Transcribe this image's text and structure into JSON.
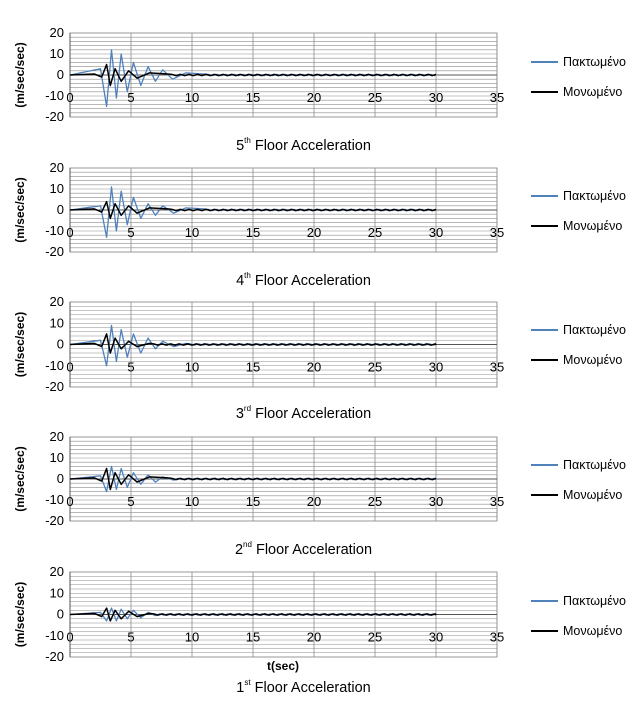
{
  "legend": [
    "Πακτωμένο",
    "Μονωμένο"
  ],
  "colors": {
    "fixed": "#4f81bd",
    "isolated": "#000000",
    "grid": "#8c8c8c",
    "axis": "#000000"
  },
  "xlabel": "t(sec)",
  "chart_data": [
    {
      "type": "line",
      "caption_prefix": "5",
      "caption_sup": "th",
      "caption_rest": " Floor Acceleration",
      "ylabel": "(m/sec/sec)",
      "xlim": [
        0,
        35
      ],
      "ylim": [
        -20,
        20
      ],
      "xticks": [
        "0",
        "5",
        "10",
        "15",
        "20",
        "25",
        "30",
        "35"
      ],
      "yticks": [
        "20",
        "10",
        "0",
        "-10",
        "-20"
      ],
      "duration": 30,
      "series": [
        {
          "name": "Πακτωμένο",
          "peaks": [
            [
              2.5,
              3
            ],
            [
              3.0,
              -15
            ],
            [
              3.4,
              12
            ],
            [
              3.8,
              -11
            ],
            [
              4.2,
              10
            ],
            [
              4.7,
              -8
            ],
            [
              5.2,
              6
            ],
            [
              5.8,
              -5
            ],
            [
              6.4,
              4
            ],
            [
              7.0,
              -3
            ],
            [
              7.6,
              2.5
            ],
            [
              8.4,
              -2
            ],
            [
              9.5,
              1
            ],
            [
              11,
              0.5
            ]
          ]
        },
        {
          "name": "Μονωμένο",
          "peaks": [
            [
              2.0,
              0.5
            ],
            [
              2.6,
              -1
            ],
            [
              3.0,
              5
            ],
            [
              3.3,
              -5
            ],
            [
              3.7,
              3
            ],
            [
              4.2,
              -3
            ],
            [
              4.8,
              2
            ],
            [
              5.5,
              -1.5
            ],
            [
              6.5,
              1
            ],
            [
              8,
              0.5
            ]
          ]
        }
      ]
    },
    {
      "type": "line",
      "caption_prefix": "4",
      "caption_sup": "th",
      "caption_rest": " Floor Acceleration",
      "ylabel": "(m/sec/sec)",
      "xlim": [
        0,
        35
      ],
      "ylim": [
        -20,
        20
      ],
      "xticks": [
        "0",
        "5",
        "10",
        "15",
        "20",
        "25",
        "30",
        "35"
      ],
      "yticks": [
        "20",
        "10",
        "0",
        "-10",
        "-20"
      ],
      "duration": 30,
      "series": [
        {
          "name": "Πακτωμένο",
          "peaks": [
            [
              2.5,
              2
            ],
            [
              3.0,
              -13
            ],
            [
              3.4,
              11
            ],
            [
              3.8,
              -10
            ],
            [
              4.2,
              9
            ],
            [
              4.7,
              -7
            ],
            [
              5.2,
              6
            ],
            [
              5.8,
              -4
            ],
            [
              6.4,
              3
            ],
            [
              7.0,
              -2.5
            ],
            [
              7.6,
              2
            ],
            [
              8.5,
              -1.5
            ],
            [
              9.5,
              1
            ],
            [
              11,
              0.5
            ]
          ]
        },
        {
          "name": "Μονωμένο",
          "peaks": [
            [
              2.0,
              0.5
            ],
            [
              2.6,
              -1
            ],
            [
              3.0,
              4
            ],
            [
              3.3,
              -4
            ],
            [
              3.7,
              3
            ],
            [
              4.2,
              -2.5
            ],
            [
              4.8,
              2
            ],
            [
              5.5,
              -1.5
            ],
            [
              6.5,
              1
            ],
            [
              8,
              0.5
            ]
          ]
        }
      ]
    },
    {
      "type": "line",
      "caption_prefix": "3",
      "caption_sup": "rd",
      "caption_rest": " Floor Acceleration",
      "ylabel": "(m/sec/sec)",
      "xlim": [
        0,
        35
      ],
      "ylim": [
        -20,
        20
      ],
      "xticks": [
        "0",
        "5",
        "10",
        "15",
        "20",
        "25",
        "30",
        "35"
      ],
      "yticks": [
        "20",
        "10",
        "0",
        "-10",
        "-20"
      ],
      "duration": 30,
      "series": [
        {
          "name": "Πακτωμένο",
          "peaks": [
            [
              2.5,
              2
            ],
            [
              3.0,
              -10
            ],
            [
              3.4,
              9
            ],
            [
              3.8,
              -8
            ],
            [
              4.2,
              7
            ],
            [
              4.7,
              -6
            ],
            [
              5.2,
              5
            ],
            [
              5.8,
              -4
            ],
            [
              6.4,
              3
            ],
            [
              7.0,
              -2
            ],
            [
              7.6,
              1.5
            ],
            [
              8.5,
              -1
            ],
            [
              9.5,
              0.5
            ]
          ]
        },
        {
          "name": "Μονωμένο",
          "peaks": [
            [
              2.0,
              0.5
            ],
            [
              2.6,
              -1
            ],
            [
              3.0,
              5
            ],
            [
              3.3,
              -4
            ],
            [
              3.7,
              3
            ],
            [
              4.2,
              -2
            ],
            [
              4.8,
              1.5
            ],
            [
              5.5,
              -1
            ],
            [
              6.5,
              0.5
            ]
          ]
        }
      ]
    },
    {
      "type": "line",
      "caption_prefix": "2",
      "caption_sup": "nd",
      "caption_rest": " Floor Acceleration",
      "ylabel": "(m/sec/sec)",
      "xlim": [
        0,
        35
      ],
      "ylim": [
        -20,
        20
      ],
      "xticks": [
        "0",
        "5",
        "10",
        "15",
        "20",
        "25",
        "30",
        "35"
      ],
      "yticks": [
        "20",
        "10",
        "0",
        "-10",
        "-20"
      ],
      "duration": 30,
      "series": [
        {
          "name": "Πακτωμένο",
          "peaks": [
            [
              2.5,
              1.5
            ],
            [
              3.0,
              -6
            ],
            [
              3.4,
              6
            ],
            [
              3.8,
              -5
            ],
            [
              4.2,
              5
            ],
            [
              4.7,
              -4
            ],
            [
              5.2,
              3
            ],
            [
              5.8,
              -2.5
            ],
            [
              6.4,
              2
            ],
            [
              7.0,
              -1.5
            ],
            [
              7.6,
              1
            ],
            [
              8.5,
              -0.5
            ]
          ]
        },
        {
          "name": "Μονωμένο",
          "peaks": [
            [
              2.0,
              0.5
            ],
            [
              2.6,
              -1
            ],
            [
              3.0,
              5
            ],
            [
              3.3,
              -5
            ],
            [
              3.7,
              3
            ],
            [
              4.2,
              -2.5
            ],
            [
              4.8,
              2
            ],
            [
              5.5,
              -1.5
            ],
            [
              6.5,
              1
            ],
            [
              8,
              0.5
            ]
          ]
        }
      ]
    },
    {
      "type": "line",
      "caption_prefix": "1",
      "caption_sup": "st",
      "caption_rest": " Floor Acceleration",
      "ylabel": "(m/sec/sec)",
      "xlim": [
        0,
        35
      ],
      "ylim": [
        -20,
        20
      ],
      "xticks": [
        "0",
        "5",
        "10",
        "15",
        "20",
        "25",
        "30",
        "35"
      ],
      "yticks": [
        "20",
        "10",
        "0",
        "-10",
        "-20"
      ],
      "duration": 30,
      "series": [
        {
          "name": "Πακτωμένο",
          "peaks": [
            [
              2.5,
              1
            ],
            [
              3.0,
              -3
            ],
            [
              3.4,
              3
            ],
            [
              3.8,
              -3
            ],
            [
              4.2,
              2.5
            ],
            [
              4.7,
              -2
            ],
            [
              5.2,
              2
            ],
            [
              5.8,
              -1.5
            ],
            [
              6.4,
              1
            ],
            [
              7.0,
              -0.5
            ]
          ]
        },
        {
          "name": "Μονωμένο",
          "peaks": [
            [
              2.0,
              0.5
            ],
            [
              2.6,
              -1
            ],
            [
              3.0,
              3
            ],
            [
              3.3,
              -3
            ],
            [
              3.7,
              2
            ],
            [
              4.2,
              -2
            ],
            [
              4.8,
              1.5
            ],
            [
              5.5,
              -1
            ],
            [
              6.5,
              0.5
            ]
          ]
        }
      ]
    }
  ]
}
